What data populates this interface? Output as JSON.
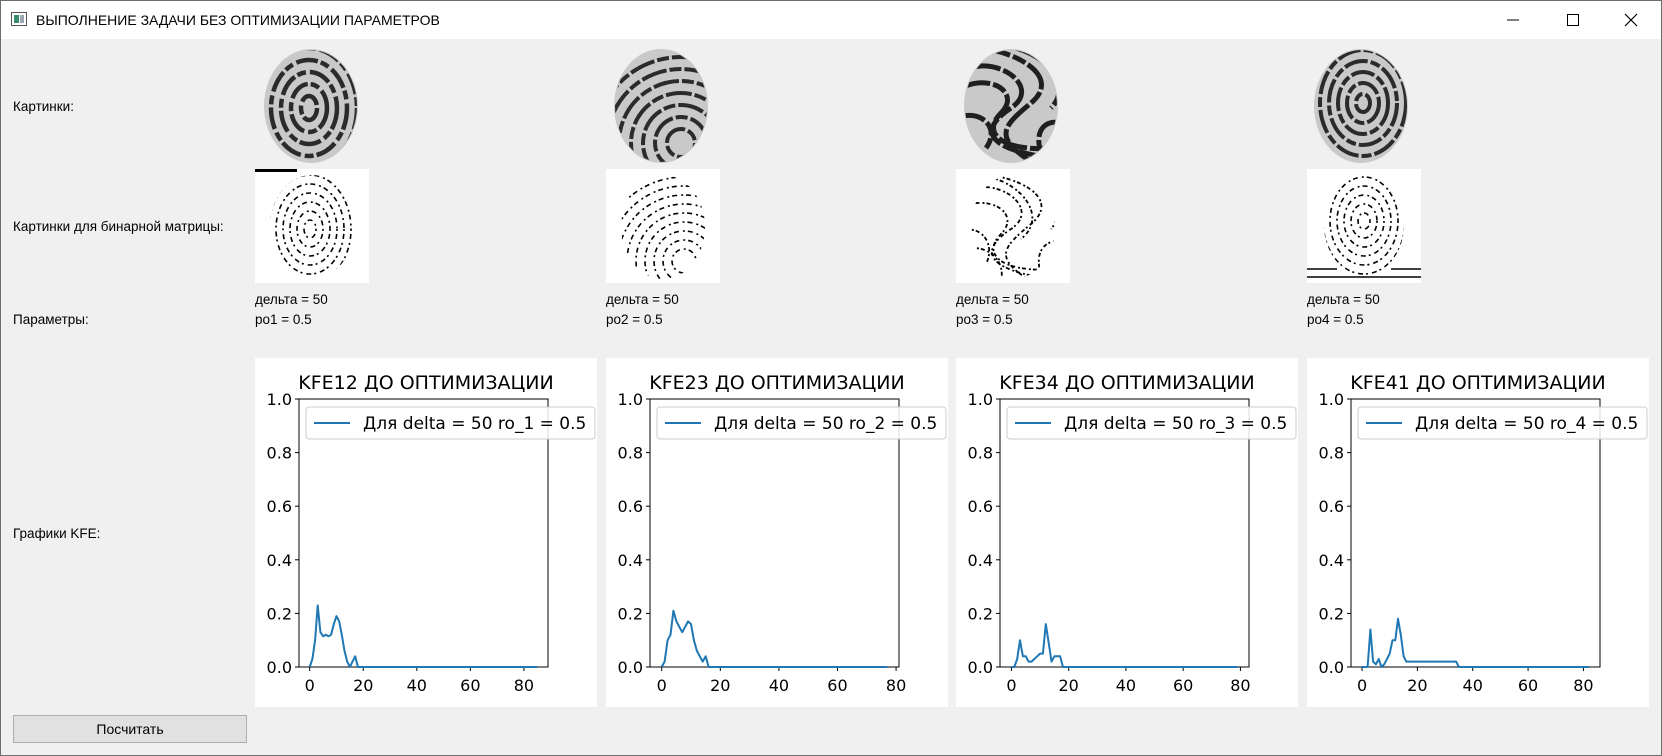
{
  "window": {
    "title": "ВЫПОЛНЕНИЕ ЗАДАЧИ БЕЗ ОПТИМИЗАЦИИ ПАРАМЕТРОВ"
  },
  "labels": {
    "images": "Картинки:",
    "binary_images": "Картинки для бинарной матрицы:",
    "parameters": "Параметры:",
    "charts": "Графики KFE:"
  },
  "params": [
    {
      "delta": "дельта = 50",
      "ro": "ро1 = 0.5"
    },
    {
      "delta": "дельта = 50",
      "ro": "ро2 = 0.5"
    },
    {
      "delta": "дельта = 50",
      "ro": "ро3 = 0.5"
    },
    {
      "delta": "дельта = 50",
      "ro": "ро4 = 0.5"
    }
  ],
  "button": {
    "calculate": "Посчитать"
  },
  "colors": {
    "line": "#1f77b4",
    "window_bg": "#f0f0f0"
  },
  "chart_data": [
    {
      "type": "line",
      "title": "KFE12 ДО ОПТИМИЗАЦИИ",
      "legend": "top-left",
      "xlim": [
        -4,
        89
      ],
      "ylim": [
        0,
        1.0
      ],
      "xticks": [
        "0",
        "20",
        "40",
        "60",
        "80"
      ],
      "yticks": [
        "0.0",
        "0.2",
        "0.4",
        "0.6",
        "0.8",
        "1.0"
      ],
      "series": [
        {
          "name": "Для delta = 50 ro_1 = 0.5",
          "x": [
            0,
            1,
            2,
            3,
            4,
            5,
            6,
            7,
            8,
            9,
            10,
            11,
            12,
            13,
            14,
            15,
            16,
            17,
            18,
            20,
            40,
            60,
            80,
            85
          ],
          "y": [
            0,
            0.03,
            0.1,
            0.23,
            0.13,
            0.115,
            0.12,
            0.115,
            0.12,
            0.16,
            0.19,
            0.17,
            0.12,
            0.06,
            0.02,
            0.0,
            0.02,
            0.04,
            0.0,
            0.0,
            0.0,
            0.0,
            0.0,
            0.0
          ]
        }
      ]
    },
    {
      "type": "line",
      "title": "KFE23 ДО ОПТИМИЗАЦИИ",
      "legend": "top-left",
      "xlim": [
        -4,
        81
      ],
      "ylim": [
        0,
        1.0
      ],
      "xticks": [
        "0",
        "20",
        "40",
        "60",
        "80"
      ],
      "yticks": [
        "0.0",
        "0.2",
        "0.4",
        "0.6",
        "0.8",
        "1.0"
      ],
      "series": [
        {
          "name": "Для delta = 50 ro_2 = 0.5",
          "x": [
            0,
            1,
            2,
            3,
            4,
            5,
            6,
            7,
            8,
            9,
            10,
            11,
            12,
            13,
            14,
            15,
            16,
            20,
            40,
            60,
            77
          ],
          "y": [
            0,
            0.02,
            0.1,
            0.12,
            0.21,
            0.17,
            0.15,
            0.13,
            0.15,
            0.17,
            0.16,
            0.1,
            0.06,
            0.04,
            0.02,
            0.04,
            0.0,
            0.0,
            0.0,
            0.0,
            0.0
          ]
        }
      ]
    },
    {
      "type": "line",
      "title": "KFE34 ДО ОПТИМИЗАЦИИ",
      "legend": "top-left",
      "xlim": [
        -4,
        83
      ],
      "ylim": [
        0,
        1.0
      ],
      "xticks": [
        "0",
        "20",
        "40",
        "60",
        "80"
      ],
      "yticks": [
        "0.0",
        "0.2",
        "0.4",
        "0.6",
        "0.8",
        "1.0"
      ],
      "series": [
        {
          "name": "Для delta = 50 ro_3 = 0.5",
          "x": [
            0,
            1,
            2,
            3,
            4,
            5,
            6,
            7,
            8,
            9,
            10,
            11,
            12,
            13,
            14,
            15,
            16,
            17,
            18,
            19,
            40,
            60,
            79
          ],
          "y": [
            0,
            0.0,
            0.03,
            0.1,
            0.04,
            0.04,
            0.02,
            0.02,
            0.03,
            0.04,
            0.05,
            0.05,
            0.16,
            0.09,
            0.02,
            0.04,
            0.04,
            0.04,
            0.0,
            0.0,
            0.0,
            0.0,
            0.0
          ]
        }
      ]
    },
    {
      "type": "line",
      "title": "KFE41 ДО ОПТИМИЗАЦИИ",
      "legend": "top-left",
      "xlim": [
        -4,
        86
      ],
      "ylim": [
        0,
        1.0
      ],
      "xticks": [
        "0",
        "20",
        "40",
        "60",
        "80"
      ],
      "yticks": [
        "0.0",
        "0.2",
        "0.4",
        "0.6",
        "0.8",
        "1.0"
      ],
      "series": [
        {
          "name": "Для delta = 50 ro_4 = 0.5",
          "x": [
            0,
            1,
            2,
            3,
            4,
            5,
            6,
            7,
            8,
            9,
            10,
            11,
            12,
            13,
            14,
            15,
            16,
            20,
            30,
            34,
            35,
            40,
            60,
            82
          ],
          "y": [
            0,
            0.0,
            0.0,
            0.14,
            0.02,
            0.01,
            0.03,
            0.0,
            0.01,
            0.03,
            0.05,
            0.1,
            0.1,
            0.18,
            0.12,
            0.04,
            0.02,
            0.02,
            0.02,
            0.02,
            0.0,
            0.0,
            0.0,
            0.0
          ]
        }
      ]
    }
  ]
}
